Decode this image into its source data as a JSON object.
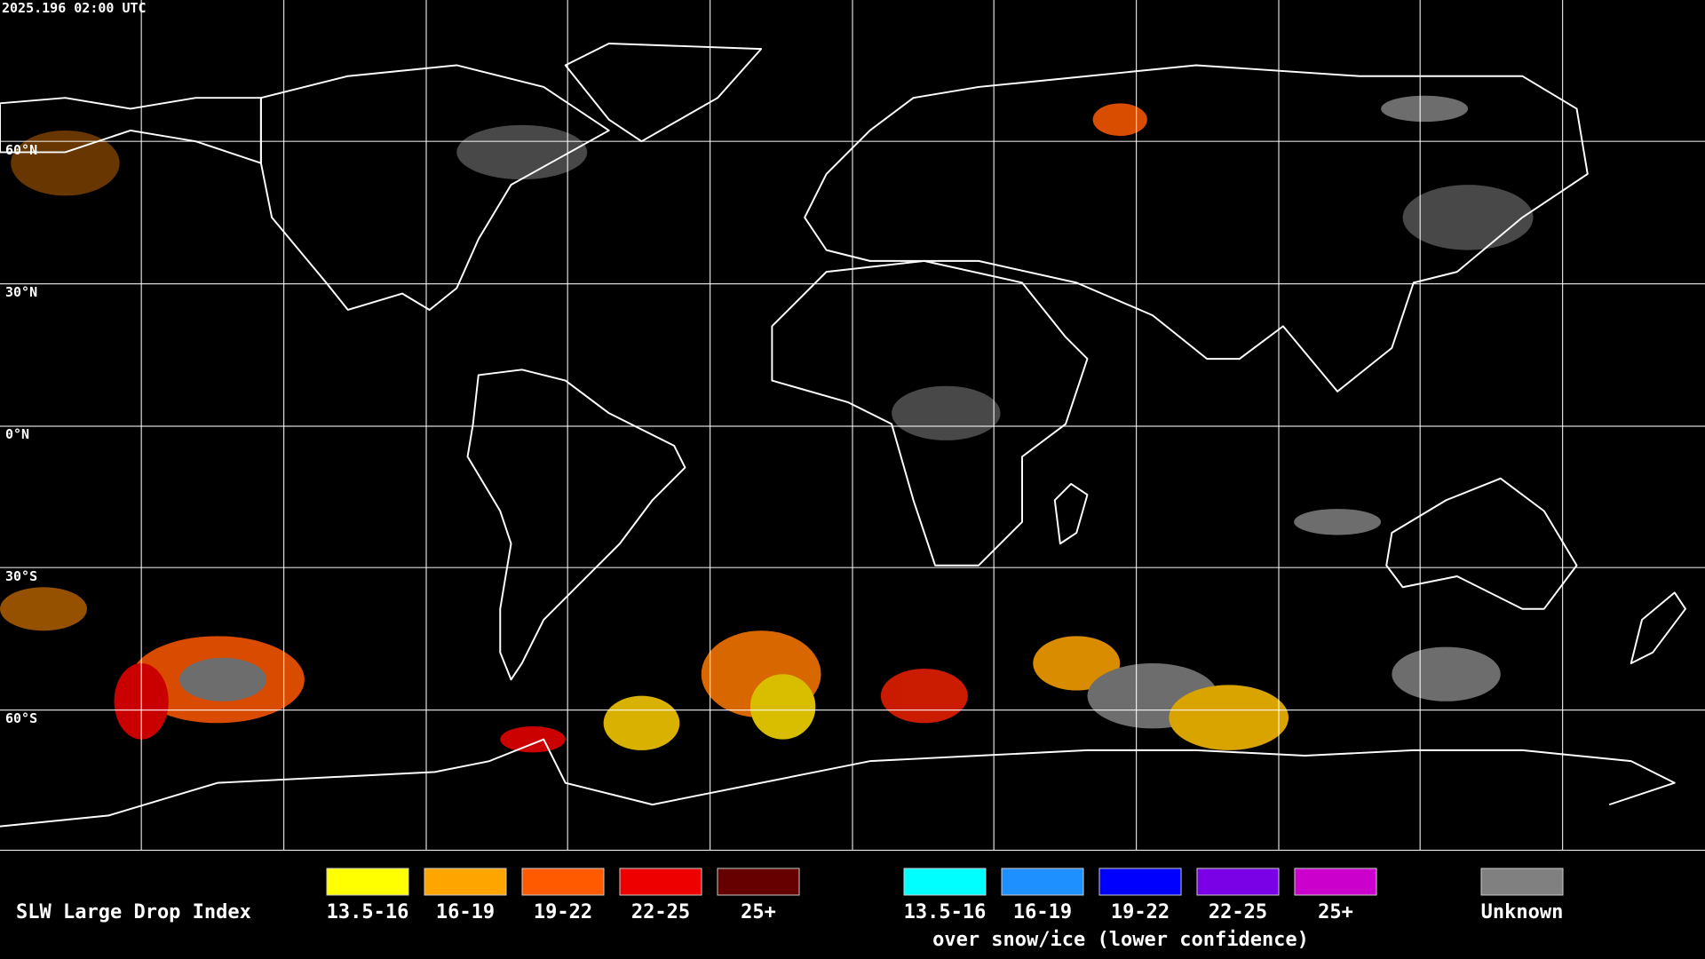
{
  "header": {
    "timestamp": "2025.196 02:00 UTC"
  },
  "latitude_labels": [
    "60°N",
    "30°N",
    "0°N",
    "30°S",
    "60°S"
  ],
  "legend": {
    "title": "SLW Large Drop Index",
    "items": [
      {
        "label": "13.5-16",
        "color": "#ffff00"
      },
      {
        "label": "16-19",
        "color": "#ffa500"
      },
      {
        "label": "19-22",
        "color": "#ff5a00"
      },
      {
        "label": "22-25",
        "color": "#ee0000"
      },
      {
        "label": "25+",
        "color": "#660000"
      }
    ],
    "snow_items": [
      {
        "label": "13.5-16",
        "color": "#00ffff"
      },
      {
        "label": "16-19",
        "color": "#1e90ff"
      },
      {
        "label": "19-22",
        "color": "#0000ff"
      },
      {
        "label": "22-25",
        "color": "#7a00e6"
      },
      {
        "label": "25+",
        "color": "#cc00cc"
      }
    ],
    "snow_note": "over snow/ice (lower confidence)",
    "unknown": {
      "label": "Unknown",
      "color": "#808080"
    }
  }
}
